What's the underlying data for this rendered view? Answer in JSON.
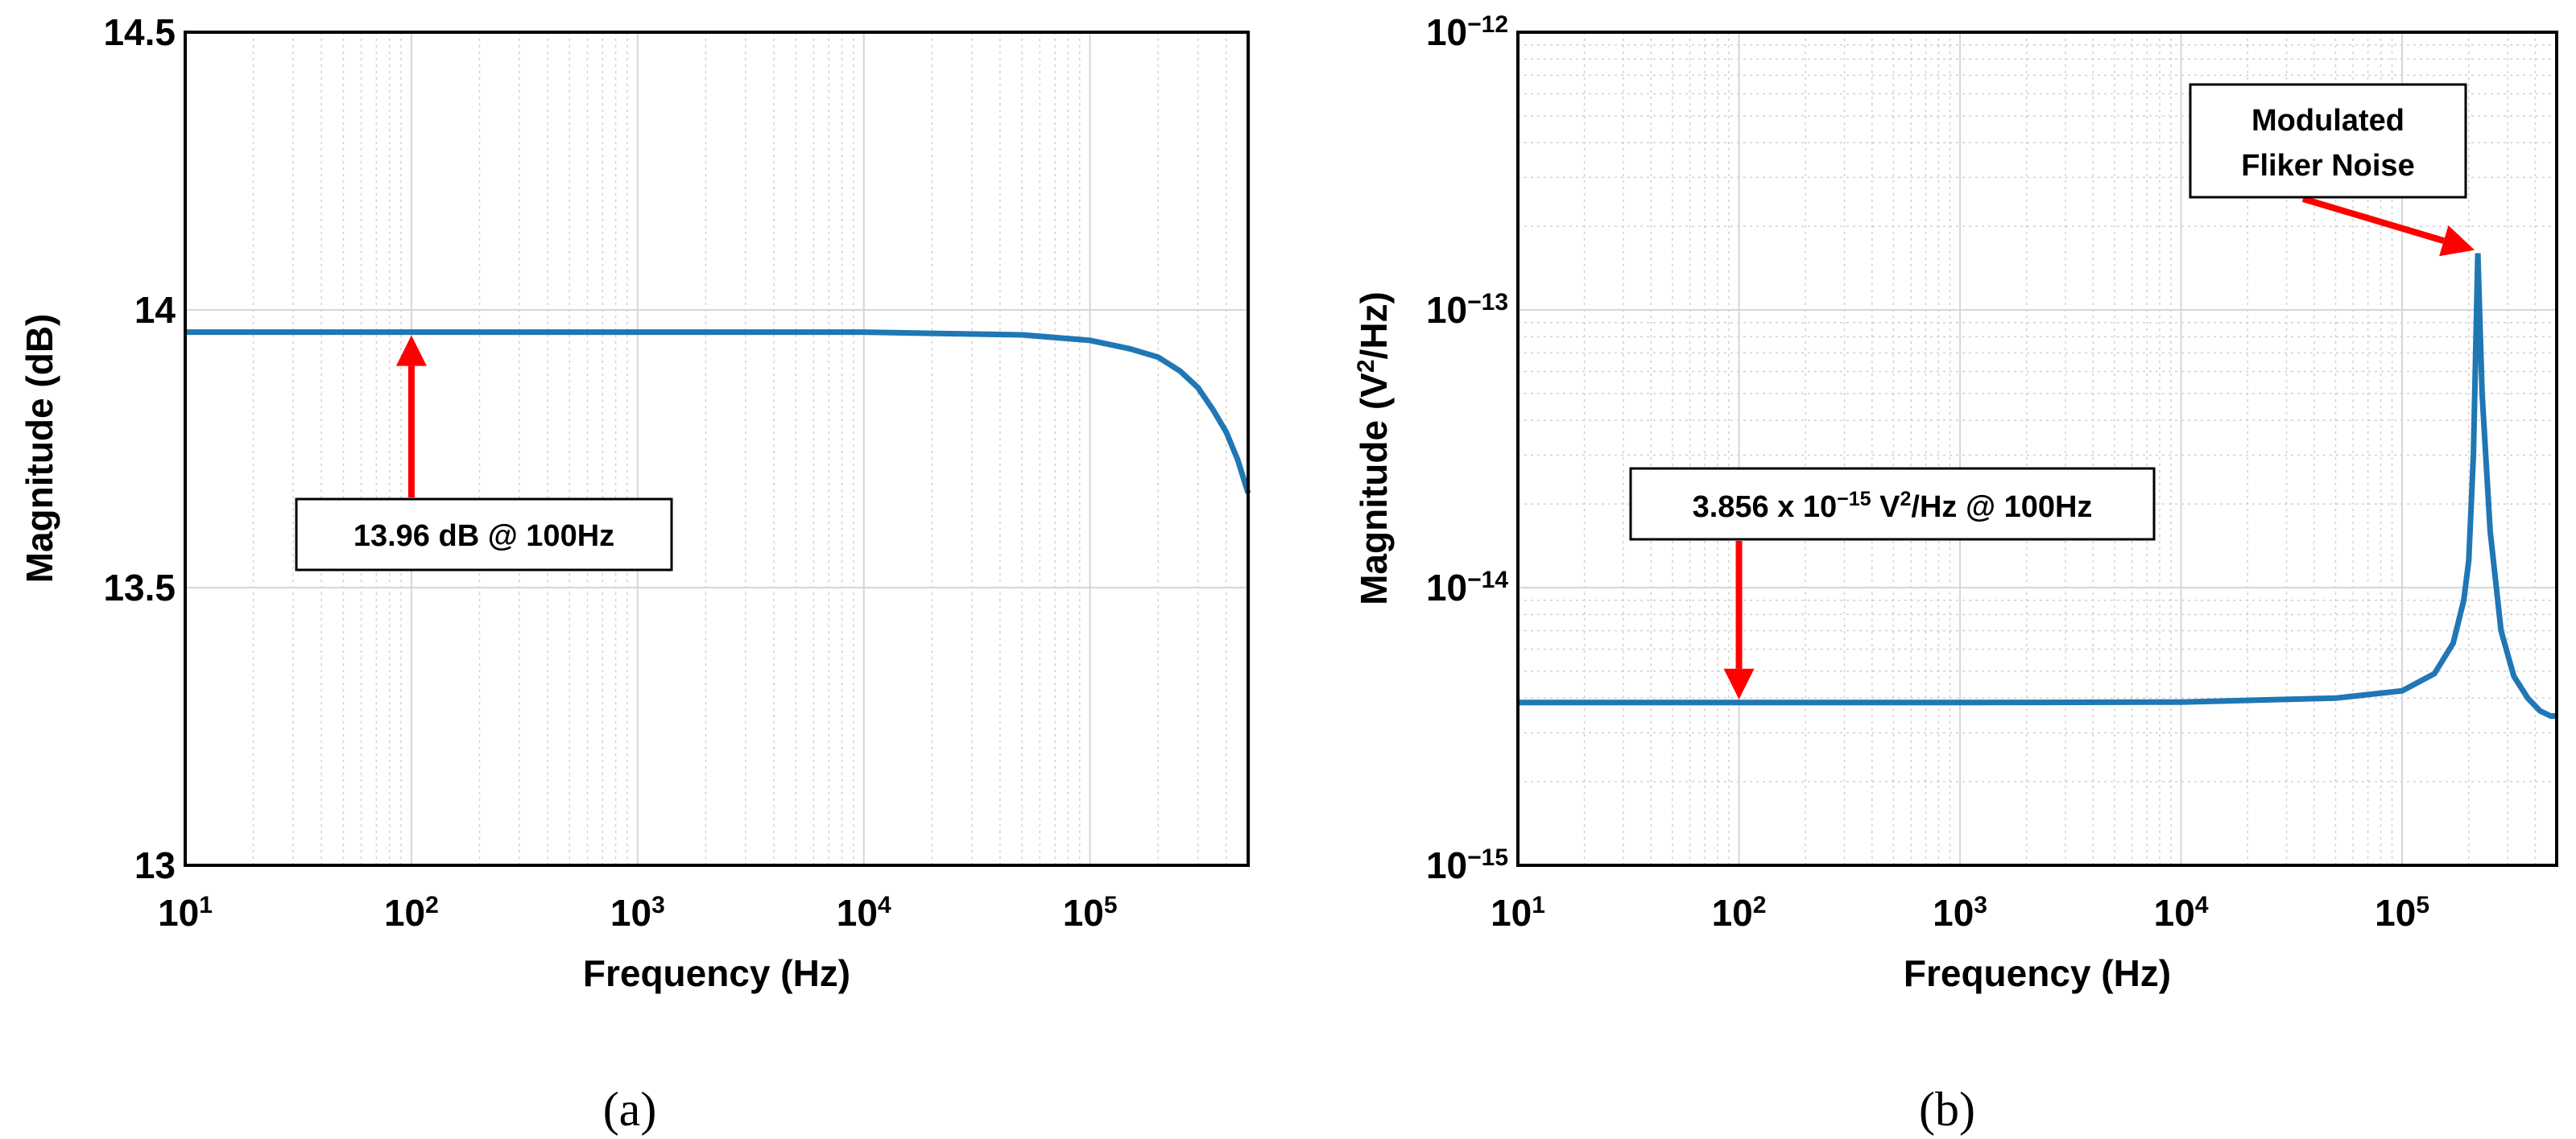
{
  "chart_data": [
    {
      "type": "line",
      "subfigure_label": "(a)",
      "xlabel": "Frequency (Hz)",
      "ylabel": "Magnitude (dB)",
      "xscale": "log",
      "yscale": "linear",
      "xlim": [
        10,
        500000
      ],
      "ylim": [
        13,
        14.5
      ],
      "grid": true,
      "x_ticks": [
        {
          "base": "10",
          "exp": "1"
        },
        {
          "base": "10",
          "exp": "2"
        },
        {
          "base": "10",
          "exp": "3"
        },
        {
          "base": "10",
          "exp": "4"
        },
        {
          "base": "10",
          "exp": "5"
        }
      ],
      "y_ticks": [
        "13",
        "13.5",
        "14",
        "14.5"
      ],
      "line_color": "#1f77b4",
      "series": [
        {
          "x": [
            10,
            100,
            1000,
            10000,
            50000,
            100000,
            150000,
            200000,
            250000,
            300000,
            350000,
            400000,
            450000,
            500000
          ],
          "y": [
            13.96,
            13.96,
            13.96,
            13.96,
            13.955,
            13.945,
            13.93,
            13.915,
            13.89,
            13.86,
            13.82,
            13.78,
            13.73,
            13.67
          ]
        }
      ],
      "annotation": {
        "text": "13.96 dB @ 100Hz",
        "x": 100,
        "y": 13.96,
        "arrow_color": "#ff0000"
      }
    },
    {
      "type": "line",
      "subfigure_label": "(b)",
      "xlabel": "Frequency (Hz)",
      "ylabel": {
        "pre": "Magnitude (V",
        "sup": "2",
        "post": "/Hz)"
      },
      "xscale": "log",
      "yscale": "log",
      "xlim": [
        10,
        500000
      ],
      "ylim": [
        1e-15,
        1e-12
      ],
      "grid": true,
      "x_ticks": [
        {
          "base": "10",
          "exp": "1"
        },
        {
          "base": "10",
          "exp": "2"
        },
        {
          "base": "10",
          "exp": "3"
        },
        {
          "base": "10",
          "exp": "4"
        },
        {
          "base": "10",
          "exp": "5"
        }
      ],
      "y_ticks": [
        {
          "base": "10",
          "exp": "−15"
        },
        {
          "base": "10",
          "exp": "−14"
        },
        {
          "base": "10",
          "exp": "−13"
        },
        {
          "base": "10",
          "exp": "−12"
        }
      ],
      "line_color": "#1f77b4",
      "series": [
        {
          "x": [
            10,
            100,
            1000,
            10000,
            50000,
            100000,
            140000,
            170000,
            190000,
            200000,
            210000,
            220000,
            230000,
            250000,
            280000,
            320000,
            370000,
            420000,
            470000,
            500000
          ],
          "y": [
            3.856e-15,
            3.856e-15,
            3.856e-15,
            3.87e-15,
            4e-15,
            4.25e-15,
            4.9e-15,
            6.3e-15,
            9e-15,
            1.25e-14,
            3e-14,
            1.6e-13,
            5e-14,
            1.6e-14,
            7e-15,
            4.8e-15,
            4e-15,
            3.6e-15,
            3.45e-15,
            3.45e-15
          ]
        }
      ],
      "annotations": [
        {
          "kind": "value",
          "parts": {
            "a": "3.856 x 10",
            "exp": "−15",
            "b": " V",
            "sup": "2",
            "c": "/Hz @ 100Hz"
          },
          "x": 100,
          "y": 3.856e-15,
          "arrow_color": "#ff0000"
        },
        {
          "kind": "peak",
          "lines": [
            "Modulated",
            "Fliker Noise"
          ],
          "x": 220000,
          "y": 1.6e-13,
          "arrow_color": "#ff0000"
        }
      ]
    }
  ]
}
